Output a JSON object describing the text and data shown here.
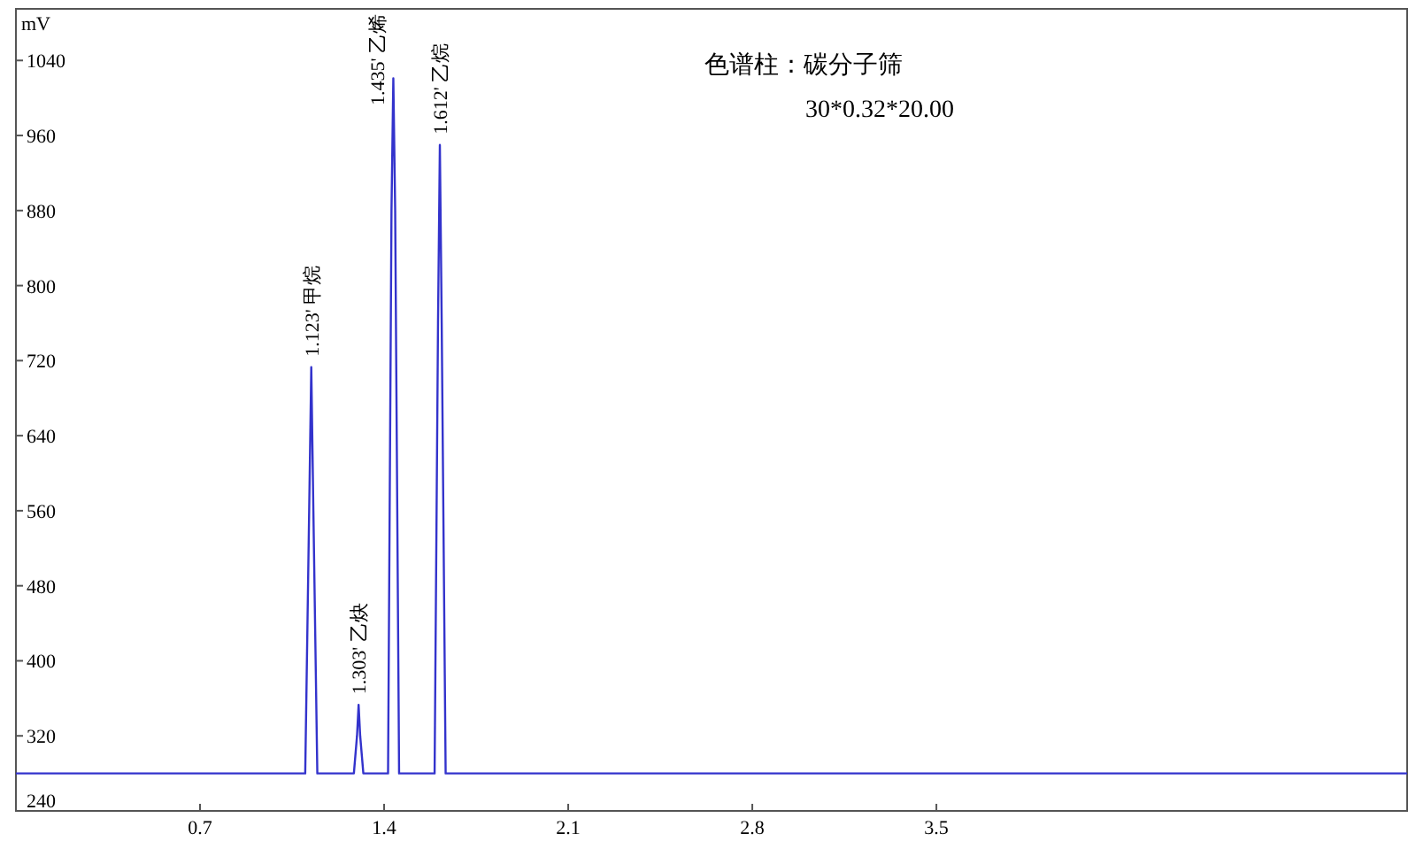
{
  "chart_data": {
    "type": "line",
    "ylabel": "mV",
    "annotations": [
      "色谱柱：碳分子筛",
      "30*0.32*20.00",
      {
        "text": "1.123' 甲烷",
        "x": 1.123,
        "y": 713
      },
      {
        "text": "1.303' 乙炔",
        "x": 1.303,
        "y": 353
      },
      {
        "text": "1.435' 乙烯",
        "x": 1.435,
        "y": 1021
      },
      {
        "text": "1.612' 乙烷",
        "x": 1.612,
        "y": 950
      }
    ],
    "series": [
      {
        "color": "#3333cc",
        "x": [
          0,
          1.1,
          1.115,
          1.123,
          1.131,
          1.146,
          1.285,
          1.297,
          1.303,
          1.309,
          1.321,
          1.415,
          1.428,
          1.435,
          1.442,
          1.457,
          1.592,
          1.605,
          1.612,
          1.619,
          1.634,
          5.29
        ],
        "values": [
          280,
          280,
          560,
          713,
          560,
          280,
          280,
          320,
          353,
          320,
          280,
          280,
          880,
          1021,
          880,
          280,
          280,
          760,
          950,
          760,
          280,
          280
        ]
      }
    ],
    "xlim": [
      0,
      5.29
    ],
    "ylim": [
      240,
      1095
    ],
    "xticks": [
      0.7,
      1.4,
      2.1,
      2.8,
      3.5
    ],
    "yticks": [
      240,
      320,
      400,
      480,
      560,
      640,
      720,
      800,
      880,
      960,
      1040
    ],
    "grid": false
  }
}
